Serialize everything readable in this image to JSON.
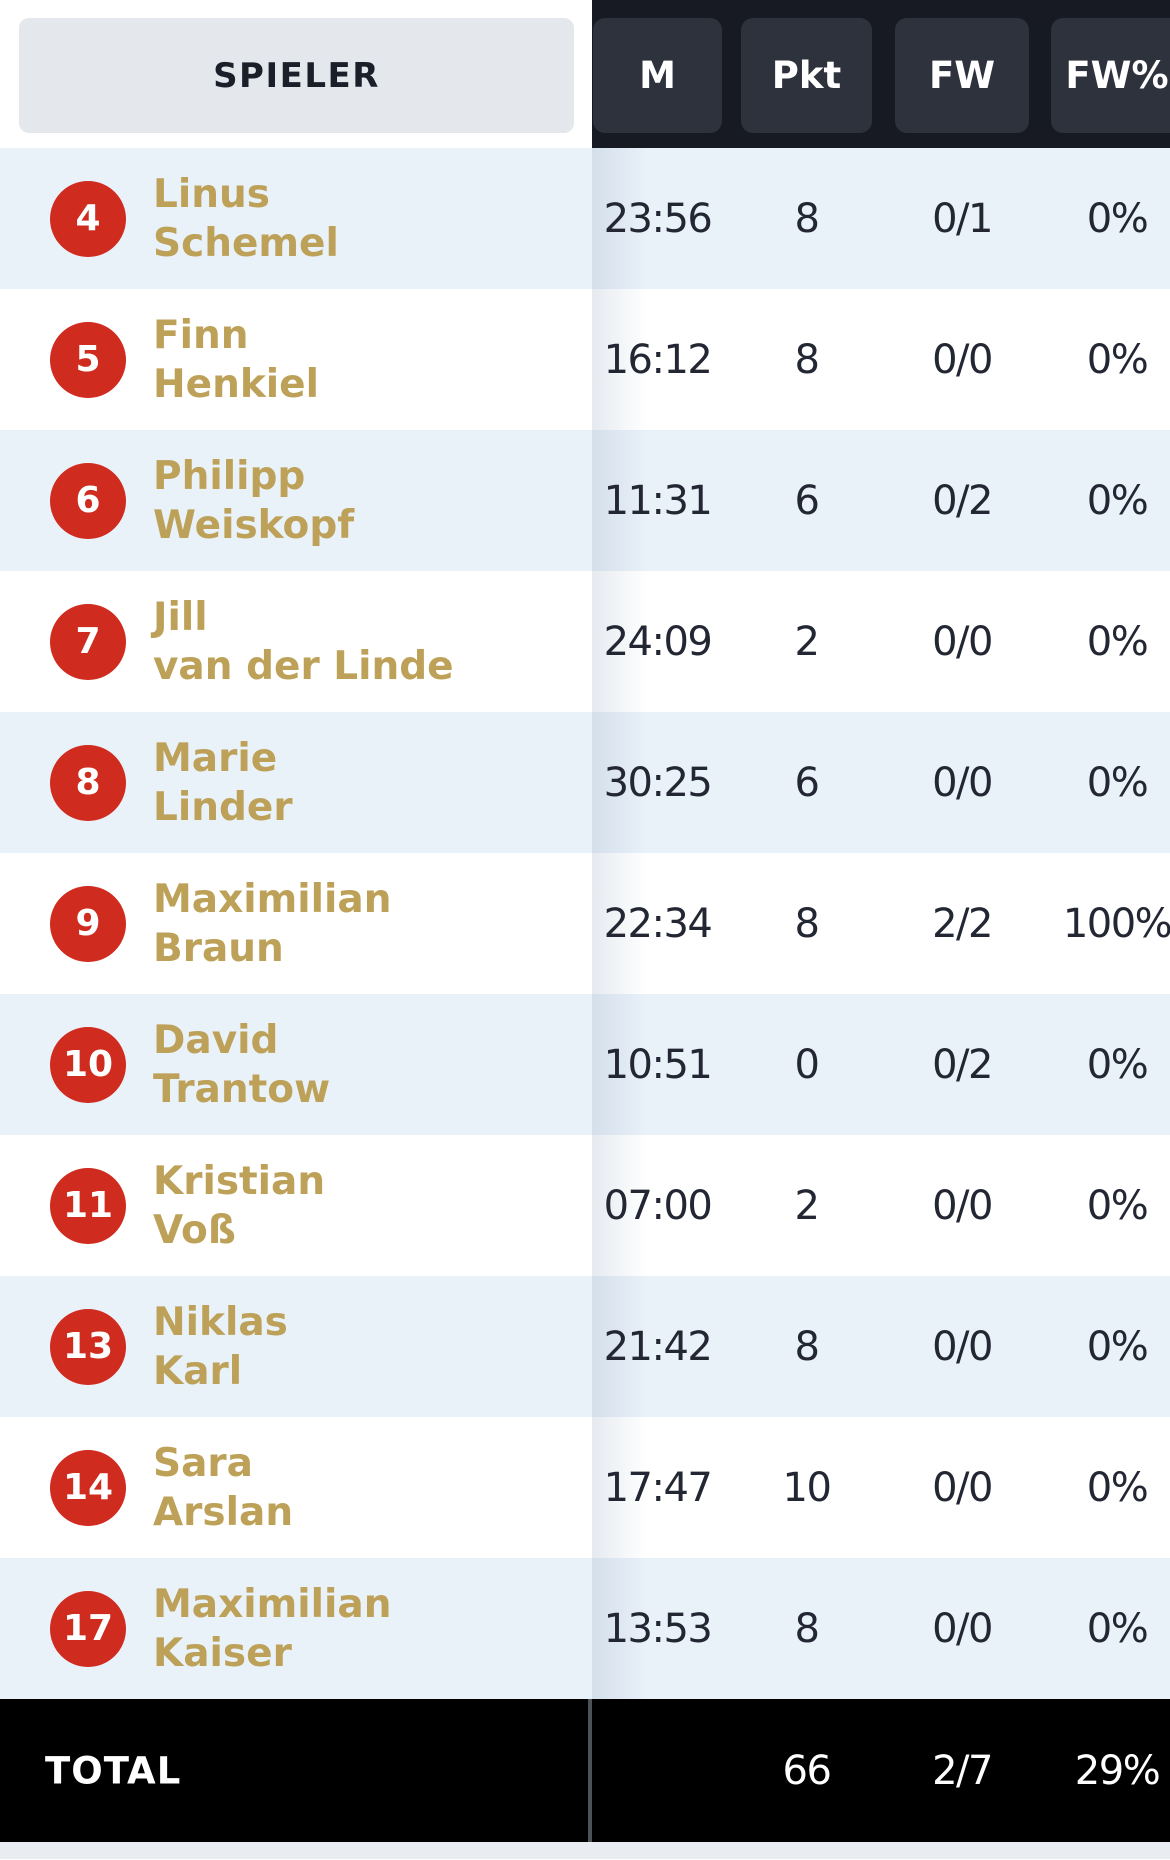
{
  "header": {
    "player_column_label": "SPIELER",
    "stat_columns": [
      {
        "key": "m",
        "label": "M"
      },
      {
        "key": "pkt",
        "label": "Pkt"
      },
      {
        "key": "fw",
        "label": "FW"
      },
      {
        "key": "fwp",
        "label": "FW%"
      }
    ]
  },
  "players": [
    {
      "number": "4",
      "first": "Linus",
      "last": "Schemel",
      "m": "23:56",
      "pkt": "8",
      "fw": "0/1",
      "fwp": "0%"
    },
    {
      "number": "5",
      "first": "Finn",
      "last": "Henkiel",
      "m": "16:12",
      "pkt": "8",
      "fw": "0/0",
      "fwp": "0%"
    },
    {
      "number": "6",
      "first": "Philipp",
      "last": "Weiskopf",
      "m": "11:31",
      "pkt": "6",
      "fw": "0/2",
      "fwp": "0%"
    },
    {
      "number": "7",
      "first": "Jill",
      "last": "van der Linde",
      "m": "24:09",
      "pkt": "2",
      "fw": "0/0",
      "fwp": "0%"
    },
    {
      "number": "8",
      "first": "Marie",
      "last": "Linder",
      "m": "30:25",
      "pkt": "6",
      "fw": "0/0",
      "fwp": "0%"
    },
    {
      "number": "9",
      "first": "Maximilian",
      "last": "Braun",
      "m": "22:34",
      "pkt": "8",
      "fw": "2/2",
      "fwp": "100%"
    },
    {
      "number": "10",
      "first": "David",
      "last": "Trantow",
      "m": "10:51",
      "pkt": "0",
      "fw": "0/2",
      "fwp": "0%"
    },
    {
      "number": "11",
      "first": "Kristian",
      "last": "Voß",
      "m": "07:00",
      "pkt": "2",
      "fw": "0/0",
      "fwp": "0%"
    },
    {
      "number": "13",
      "first": "Niklas",
      "last": "Karl",
      "m": "21:42",
      "pkt": "8",
      "fw": "0/0",
      "fwp": "0%"
    },
    {
      "number": "14",
      "first": "Sara",
      "last": "Arslan",
      "m": "17:47",
      "pkt": "10",
      "fw": "0/0",
      "fwp": "0%"
    },
    {
      "number": "17",
      "first": "Maximilian",
      "last": "Kaiser",
      "m": "13:53",
      "pkt": "8",
      "fw": "0/0",
      "fwp": "0%"
    }
  ],
  "total": {
    "label": "TOTAL",
    "m": "",
    "pkt": "66",
    "fw": "2/7",
    "fwp": "29%"
  },
  "colors": {
    "accent_red": "#cf2b1e",
    "gold": "#bda158",
    "header_dark": "#171a23",
    "pill_dark": "#2e323d",
    "row_alt_blue": "#e9f1f9",
    "total_black": "#000000"
  }
}
